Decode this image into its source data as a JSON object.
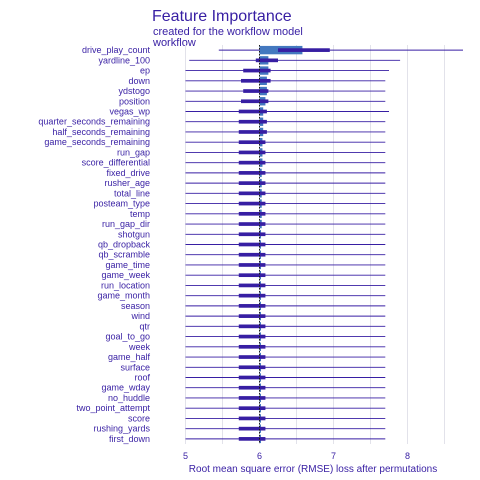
{
  "chart_data": {
    "type": "bar",
    "title": "Feature Importance",
    "subtitle": "created for the workflow model",
    "model_label": "workflow",
    "xlabel": "Root mean square error (RMSE) loss after permutations",
    "ylabel": "",
    "xlim": [
      4.75,
      8.75
    ],
    "xticks": [
      5,
      6,
      7,
      8
    ],
    "baseline": 6.0,
    "grid": true,
    "colors": {
      "bar": "#4378bf",
      "box": "#371ea3",
      "text": "#371ea3",
      "baseline": "#1f1a17"
    },
    "features": [
      {
        "name": "drive_play_count",
        "mean": 6.58,
        "q1": 6.25,
        "q3": 6.95,
        "min": 5.45,
        "max": 8.75
      },
      {
        "name": "yardline_100",
        "mean": 6.12,
        "q1": 5.95,
        "q3": 6.25,
        "min": 5.05,
        "max": 7.9
      },
      {
        "name": "ep",
        "mean": 6.12,
        "q1": 5.78,
        "q3": 6.15,
        "min": 5.0,
        "max": 7.75
      },
      {
        "name": "down",
        "mean": 6.1,
        "q1": 5.75,
        "q3": 6.15,
        "min": 5.0,
        "max": 7.7
      },
      {
        "name": "ydstogo",
        "mean": 6.1,
        "q1": 5.78,
        "q3": 6.12,
        "min": 5.0,
        "max": 7.7
      },
      {
        "name": "position",
        "mean": 6.08,
        "q1": 5.75,
        "q3": 6.12,
        "min": 5.0,
        "max": 7.7
      },
      {
        "name": "vegas_wp",
        "mean": 6.05,
        "q1": 5.72,
        "q3": 6.1,
        "min": 5.0,
        "max": 7.75
      },
      {
        "name": "quarter_seconds_remaining",
        "mean": 6.05,
        "q1": 5.72,
        "q3": 6.1,
        "min": 5.0,
        "max": 7.7
      },
      {
        "name": "half_seconds_remaining",
        "mean": 6.05,
        "q1": 5.72,
        "q3": 6.1,
        "min": 5.0,
        "max": 7.7
      },
      {
        "name": "game_seconds_remaining",
        "mean": 6.04,
        "q1": 5.72,
        "q3": 6.08,
        "min": 5.0,
        "max": 7.7
      },
      {
        "name": "run_gap",
        "mean": 6.04,
        "q1": 5.72,
        "q3": 6.08,
        "min": 5.0,
        "max": 7.7
      },
      {
        "name": "score_differential",
        "mean": 6.04,
        "q1": 5.72,
        "q3": 6.08,
        "min": 5.0,
        "max": 7.7
      },
      {
        "name": "fixed_drive",
        "mean": 6.03,
        "q1": 5.72,
        "q3": 6.08,
        "min": 5.0,
        "max": 7.7
      },
      {
        "name": "rusher_age",
        "mean": 6.03,
        "q1": 5.72,
        "q3": 6.08,
        "min": 5.0,
        "max": 7.7
      },
      {
        "name": "total_line",
        "mean": 6.03,
        "q1": 5.72,
        "q3": 6.08,
        "min": 5.0,
        "max": 7.7
      },
      {
        "name": "posteam_type",
        "mean": 6.03,
        "q1": 5.72,
        "q3": 6.08,
        "min": 5.0,
        "max": 7.7
      },
      {
        "name": "temp",
        "mean": 6.03,
        "q1": 5.72,
        "q3": 6.08,
        "min": 5.0,
        "max": 7.7
      },
      {
        "name": "run_gap_dir",
        "mean": 6.03,
        "q1": 5.72,
        "q3": 6.08,
        "min": 5.0,
        "max": 7.7
      },
      {
        "name": "shotgun",
        "mean": 6.02,
        "q1": 5.72,
        "q3": 6.08,
        "min": 5.0,
        "max": 7.7
      },
      {
        "name": "qb_dropback",
        "mean": 6.02,
        "q1": 5.72,
        "q3": 6.08,
        "min": 5.0,
        "max": 7.7
      },
      {
        "name": "qb_scramble",
        "mean": 6.02,
        "q1": 5.72,
        "q3": 6.08,
        "min": 5.0,
        "max": 7.7
      },
      {
        "name": "game_time",
        "mean": 6.02,
        "q1": 5.72,
        "q3": 6.08,
        "min": 5.0,
        "max": 7.7
      },
      {
        "name": "game_week",
        "mean": 6.02,
        "q1": 5.72,
        "q3": 6.08,
        "min": 5.0,
        "max": 7.7
      },
      {
        "name": "run_location",
        "mean": 6.02,
        "q1": 5.72,
        "q3": 6.08,
        "min": 5.0,
        "max": 7.7
      },
      {
        "name": "game_month",
        "mean": 6.02,
        "q1": 5.72,
        "q3": 6.08,
        "min": 5.0,
        "max": 7.7
      },
      {
        "name": "season",
        "mean": 6.02,
        "q1": 5.72,
        "q3": 6.08,
        "min": 5.0,
        "max": 7.7
      },
      {
        "name": "wind",
        "mean": 6.02,
        "q1": 5.72,
        "q3": 6.08,
        "min": 5.0,
        "max": 7.7
      },
      {
        "name": "qtr",
        "mean": 6.02,
        "q1": 5.72,
        "q3": 6.08,
        "min": 5.0,
        "max": 7.7
      },
      {
        "name": "goal_to_go",
        "mean": 6.02,
        "q1": 5.72,
        "q3": 6.08,
        "min": 5.0,
        "max": 7.7
      },
      {
        "name": "week",
        "mean": 6.02,
        "q1": 5.72,
        "q3": 6.08,
        "min": 5.0,
        "max": 7.7
      },
      {
        "name": "game_half",
        "mean": 6.02,
        "q1": 5.72,
        "q3": 6.08,
        "min": 5.0,
        "max": 7.7
      },
      {
        "name": "surface",
        "mean": 6.02,
        "q1": 5.72,
        "q3": 6.08,
        "min": 5.0,
        "max": 7.7
      },
      {
        "name": "roof",
        "mean": 6.02,
        "q1": 5.72,
        "q3": 6.08,
        "min": 5.0,
        "max": 7.7
      },
      {
        "name": "game_wday",
        "mean": 6.02,
        "q1": 5.72,
        "q3": 6.08,
        "min": 5.0,
        "max": 7.7
      },
      {
        "name": "no_huddle",
        "mean": 6.02,
        "q1": 5.72,
        "q3": 6.08,
        "min": 5.0,
        "max": 7.7
      },
      {
        "name": "two_point_attempt",
        "mean": 6.02,
        "q1": 5.72,
        "q3": 6.08,
        "min": 5.0,
        "max": 7.7
      },
      {
        "name": "score",
        "mean": 6.02,
        "q1": 5.72,
        "q3": 6.08,
        "min": 5.0,
        "max": 7.7
      },
      {
        "name": "rushing_yards",
        "mean": 6.02,
        "q1": 5.72,
        "q3": 6.08,
        "min": 5.0,
        "max": 7.7
      },
      {
        "name": "first_down",
        "mean": 6.02,
        "q1": 5.72,
        "q3": 6.08,
        "min": 5.0,
        "max": 7.7
      }
    ]
  }
}
